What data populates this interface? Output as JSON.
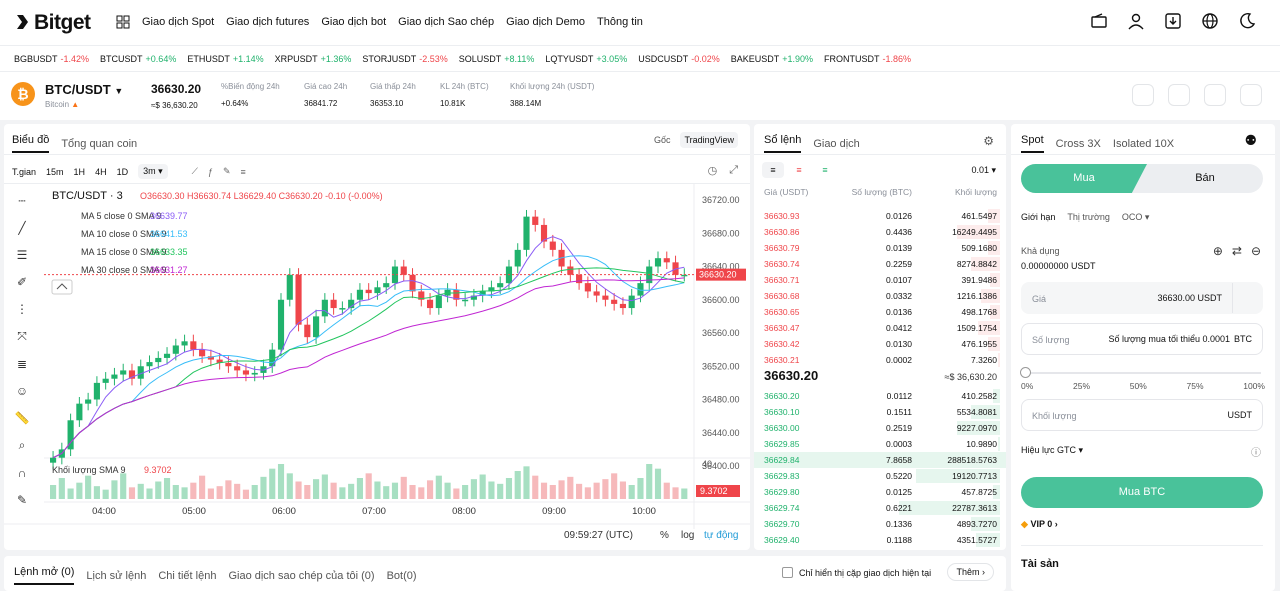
{
  "nav": {
    "logo": "Bitget",
    "menu": [
      "Giao dịch Spot",
      "Giao dịch futures",
      "Giao dịch bot",
      "Giao dịch Sao chép",
      "Giao dịch Demo",
      "Thông tin"
    ]
  },
  "ticker": [
    {
      "sym": "BGBUSDT",
      "chg": "-1.42%",
      "dir": "dn"
    },
    {
      "sym": "BTCUSDT",
      "chg": "+0.64%",
      "dir": "up"
    },
    {
      "sym": "ETHUSDT",
      "chg": "+1.14%",
      "dir": "up"
    },
    {
      "sym": "XRPUSDT",
      "chg": "+1.36%",
      "dir": "up"
    },
    {
      "sym": "STORJUSDT",
      "chg": "-2.53%",
      "dir": "dn"
    },
    {
      "sym": "SOLUSDT",
      "chg": "+8.11%",
      "dir": "up"
    },
    {
      "sym": "LQTYUSDT",
      "chg": "+3.05%",
      "dir": "up"
    },
    {
      "sym": "USDCUSDT",
      "chg": "-0.02%",
      "dir": "dn"
    },
    {
      "sym": "BAKEUSDT",
      "chg": "+1.90%",
      "dir": "up"
    },
    {
      "sym": "FRONTUSDT",
      "chg": "-1.86%",
      "dir": "dn"
    }
  ],
  "pair": {
    "name": "BTC/USDT",
    "coin": "Bitcoin",
    "last": "36630.20",
    "last_usd": "≈$ 36,630.20",
    "change_label": "%Biến động 24h",
    "change": "+0.64%",
    "high_label": "Giá cao 24h",
    "high": "36841.72",
    "low_label": "Giá thấp 24h",
    "low": "36353.10",
    "vol_btc_label": "KL 24h (BTC)",
    "vol_btc": "10.81K",
    "vol_usdt_label": "Khối lượng 24h (USDT)",
    "vol_usdt": "388.14M"
  },
  "chart": {
    "tabs": [
      "Biểu đồ",
      "Tổng quan coin"
    ],
    "view_tabs": [
      "Gốc",
      "TradingView"
    ],
    "intervals": [
      "T.gian",
      "15m",
      "1H",
      "4H",
      "1D",
      "3m"
    ],
    "header": "BTC/USDT · 3",
    "ohlc": "O36630.30  H36630.74  L36629.40  C36630.20  -0.10 (-0.00%)",
    "ma_lines": [
      {
        "label": "MA 5 close 0 SMA 9",
        "value": "36639.77",
        "color": "#8b5cf6"
      },
      {
        "label": "MA 10 close 0 SMA 9",
        "value": "36641.53",
        "color": "#38bdf8"
      },
      {
        "label": "MA 15 close 0 SMA 9",
        "value": "36633.35",
        "color": "#22c55e"
      },
      {
        "label": "MA 30 close 0 SMA 9",
        "value": "36631.27",
        "color": "#c026d3"
      }
    ],
    "volume_label": "Khối lượng SMA 9",
    "volume_value": "9.3702",
    "volume_tag": "9.3702",
    "volume_axis_top": "40",
    "price_tag": "36630.20",
    "time": "09:59:27 (UTC)",
    "footer": [
      "%",
      "log",
      "tự động"
    ],
    "chart_data": {
      "type": "candlestick",
      "y_ticks": [
        "36720.00",
        "36680.00",
        "36640.00",
        "36600.00",
        "36560.00",
        "36520.00",
        "36480.00",
        "36440.00",
        "36400.00"
      ],
      "ylim": [
        36400,
        36720
      ],
      "x_ticks": [
        "04:00",
        "05:00",
        "06:00",
        "07:00",
        "08:00",
        "09:00",
        "10:00"
      ],
      "close_path": [
        36410,
        36420,
        36455,
        36475,
        36480,
        36500,
        36505,
        36510,
        36515,
        36505,
        36520,
        36525,
        36530,
        36535,
        36545,
        36550,
        36540,
        36532,
        36528,
        36524,
        36520,
        36515,
        36510,
        36512,
        36520,
        36540,
        36600,
        36630,
        36570,
        36555,
        36580,
        36600,
        36590,
        36590,
        36600,
        36612,
        36608,
        36615,
        36620,
        36640,
        36630,
        36610,
        36600,
        36590,
        36605,
        36612,
        36600,
        36600,
        36605,
        36610,
        36615,
        36620,
        36640,
        36660,
        36700,
        36690,
        36670,
        36660,
        36640,
        36630,
        36620,
        36610,
        36605,
        36600,
        36595,
        36590,
        36605,
        36620,
        36640,
        36650,
        36645,
        36630,
        36630
      ],
      "volumes": [
        12,
        18,
        9,
        14,
        20,
        11,
        8,
        16,
        22,
        10,
        13,
        9,
        15,
        18,
        12,
        10,
        14,
        20,
        9,
        11,
        16,
        13,
        8,
        12,
        19,
        26,
        30,
        22,
        15,
        12,
        17,
        21,
        14,
        10,
        13,
        18,
        22,
        15,
        11,
        14,
        19,
        12,
        10,
        16,
        20,
        14,
        9,
        12,
        17,
        21,
        15,
        13,
        18,
        24,
        28,
        20,
        14,
        12,
        16,
        19,
        13,
        10,
        14,
        17,
        22,
        15,
        12,
        18,
        30,
        26,
        14,
        10,
        9
      ]
    }
  },
  "orderbook": {
    "tabs": [
      "Sổ lệnh",
      "Giao dịch"
    ],
    "precision": "0.01",
    "headers": [
      "Giá (USDT)",
      "Số lượng (BTC)",
      "Khối lượng"
    ],
    "asks": [
      [
        "36630.93",
        "0.0126",
        "461.5497"
      ],
      [
        "36630.86",
        "0.4436",
        "16249.4495"
      ],
      [
        "36630.79",
        "0.0139",
        "509.1680"
      ],
      [
        "36630.74",
        "0.2259",
        "8274.8842"
      ],
      [
        "36630.71",
        "0.0107",
        "391.9486"
      ],
      [
        "36630.68",
        "0.0332",
        "1216.1386"
      ],
      [
        "36630.65",
        "0.0136",
        "498.1768"
      ],
      [
        "36630.47",
        "0.0412",
        "1509.1754"
      ],
      [
        "36630.42",
        "0.0130",
        "476.1955"
      ],
      [
        "36630.21",
        "0.0002",
        "7.3260"
      ]
    ],
    "mid": "36630.20",
    "mid_usd": "≈$ 36,630.20",
    "bids": [
      [
        "36630.20",
        "0.0112",
        "410.2582"
      ],
      [
        "36630.10",
        "0.1511",
        "5534.8081"
      ],
      [
        "36630.00",
        "0.2519",
        "9227.0970"
      ],
      [
        "36629.85",
        "0.0003",
        "10.9890"
      ],
      [
        "36629.84",
        "7.8658",
        "288518.5763"
      ],
      [
        "36629.83",
        "0.5220",
        "19120.7713"
      ],
      [
        "36629.80",
        "0.0125",
        "457.8725"
      ],
      [
        "36629.74",
        "0.6221",
        "22787.3613"
      ],
      [
        "36629.70",
        "0.1336",
        "4893.7270"
      ],
      [
        "36629.40",
        "0.1188",
        "4351.5727"
      ]
    ],
    "ask_depth": [
      0.05,
      0.18,
      0.05,
      0.12,
      0.04,
      0.08,
      0.04,
      0.09,
      0.05,
      0.01
    ],
    "bid_depth": [
      0.03,
      0.12,
      0.18,
      0.01,
      1.0,
      0.35,
      0.03,
      0.42,
      0.12,
      0.1
    ]
  },
  "trade": {
    "tabs": [
      "Spot",
      "Cross 3X",
      "Isolated 10X"
    ],
    "buy": "Mua",
    "sell": "Bán",
    "order_types": [
      "Giới hạn",
      "Thị trường",
      "OCO"
    ],
    "available_label": "Khả dụng",
    "available": "0.00000000 USDT",
    "price_label": "Giá",
    "price_value": "36630.00 USDT",
    "qty_label": "Số lượng",
    "qty_placeholder": "Số lượng mua tối thiểu 0.0001",
    "qty_unit": "BTC",
    "slider": [
      "0%",
      "25%",
      "50%",
      "75%",
      "100%"
    ],
    "slider_level": 0,
    "amount_label": "Khối lượng",
    "amount_unit": "USDT",
    "tif": "Hiệu lực GTC",
    "submit": "Mua BTC",
    "vip": "VIP 0",
    "assets": "Tài sản"
  },
  "bottom": {
    "tabs": [
      "Lệnh mở (0)",
      "Lịch sử lệnh",
      "Chi tiết lệnh",
      "Giao dịch sao chép của tôi (0)",
      "Bot(0)"
    ],
    "checkbox_label": "Chỉ hiển thị cặp giao dịch hiện tại",
    "more": "Thêm"
  },
  "colors": {
    "up": "#20b26c",
    "down": "#ef454a",
    "accent": "#49c29a"
  }
}
